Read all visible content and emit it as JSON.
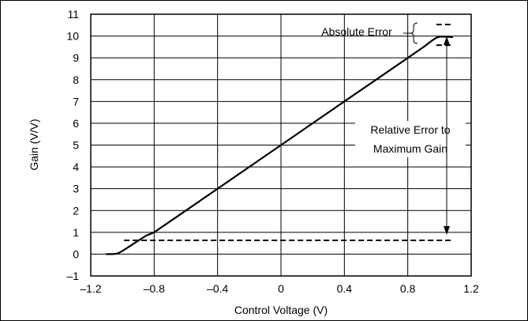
{
  "chart_data": {
    "type": "line",
    "title": "",
    "xlabel": "Control Voltage (V)",
    "ylabel": "Gain (V/V)",
    "xlim": [
      -1.2,
      1.2
    ],
    "ylim": [
      -1,
      11
    ],
    "x_ticks": [
      -1.2,
      -0.8,
      -0.4,
      0,
      0.4,
      0.8,
      1.2
    ],
    "x_tick_labels": [
      "–1.2",
      "–0.8",
      "–0.4",
      "0",
      "0.4",
      "0.8",
      "1.2"
    ],
    "y_ticks": [
      -1,
      0,
      1,
      2,
      3,
      4,
      5,
      6,
      7,
      8,
      9,
      10,
      11
    ],
    "y_tick_labels": [
      "–1",
      "0",
      "1",
      "2",
      "3",
      "4",
      "5",
      "6",
      "7",
      "8",
      "9",
      "10",
      "11"
    ],
    "grid": true,
    "series": [
      {
        "x": [
          -1.1,
          -1.06,
          -1.03,
          -1.0,
          -0.95,
          -0.9,
          -0.85,
          -0.8,
          -0.6,
          -0.4,
          -0.2,
          0,
          0.2,
          0.4,
          0.6,
          0.8,
          0.9,
          0.95,
          0.98,
          1.0,
          1.02,
          1.04,
          1.06,
          1.08
        ],
        "y": [
          0,
          0,
          0.03,
          0.15,
          0.38,
          0.62,
          0.85,
          1.0,
          2.0,
          3.0,
          4.0,
          5.0,
          6.0,
          7.0,
          8.0,
          9.0,
          9.5,
          9.78,
          9.92,
          9.97,
          9.97,
          9.97,
          9.96,
          9.95
        ]
      }
    ],
    "reference_lines": [
      {
        "style": "dashed",
        "y": 0.63,
        "x": [
          -0.99,
          1.07
        ]
      },
      {
        "style": "dashed",
        "y": 10.53,
        "x": [
          0.98,
          1.07
        ]
      },
      {
        "style": "dashed",
        "y": 9.58,
        "x": [
          0.98,
          1.07
        ]
      }
    ],
    "annotations": [
      {
        "text": "Absolute Error"
      },
      {
        "text": "Relative Error to"
      },
      {
        "text": "Maximum Gain"
      }
    ]
  }
}
